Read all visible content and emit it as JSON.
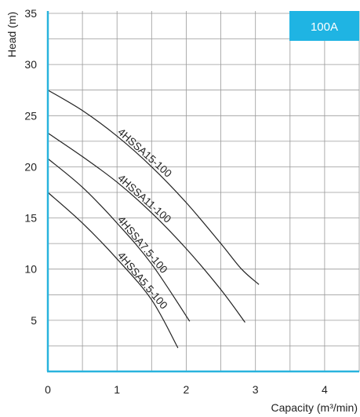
{
  "chart_data": {
    "type": "line",
    "badge": "100A",
    "xlabel": "Capacity (m³/min)",
    "ylabel": "Head (m)",
    "xlim": [
      0,
      4.5
    ],
    "ylim": [
      0,
      35
    ],
    "x_ticks": [
      0,
      1,
      2,
      3,
      4
    ],
    "y_ticks": [
      5,
      10,
      15,
      20,
      25,
      30,
      35
    ],
    "grid": true,
    "series": [
      {
        "name": "4HSSA15-100",
        "x": [
          0,
          0.5,
          1.0,
          1.5,
          2.0,
          2.5,
          2.8,
          3.05
        ],
        "y": [
          27.5,
          25.5,
          23.0,
          20.0,
          16.5,
          12.5,
          10.0,
          8.5
        ]
      },
      {
        "name": "4HSSA11-100",
        "x": [
          0,
          0.5,
          1.0,
          1.5,
          2.0,
          2.5,
          2.85
        ],
        "y": [
          23.3,
          21.0,
          18.5,
          15.5,
          12.0,
          8.0,
          4.8
        ]
      },
      {
        "name": "4HSSA7.5-100",
        "x": [
          0,
          0.5,
          1.0,
          1.5,
          2.05
        ],
        "y": [
          20.8,
          18.0,
          14.5,
          10.5,
          4.9
        ]
      },
      {
        "name": "4HSSA5.5-100",
        "x": [
          0,
          0.5,
          1.0,
          1.5,
          1.88
        ],
        "y": [
          17.5,
          14.5,
          11.0,
          7.0,
          2.3
        ]
      }
    ]
  }
}
